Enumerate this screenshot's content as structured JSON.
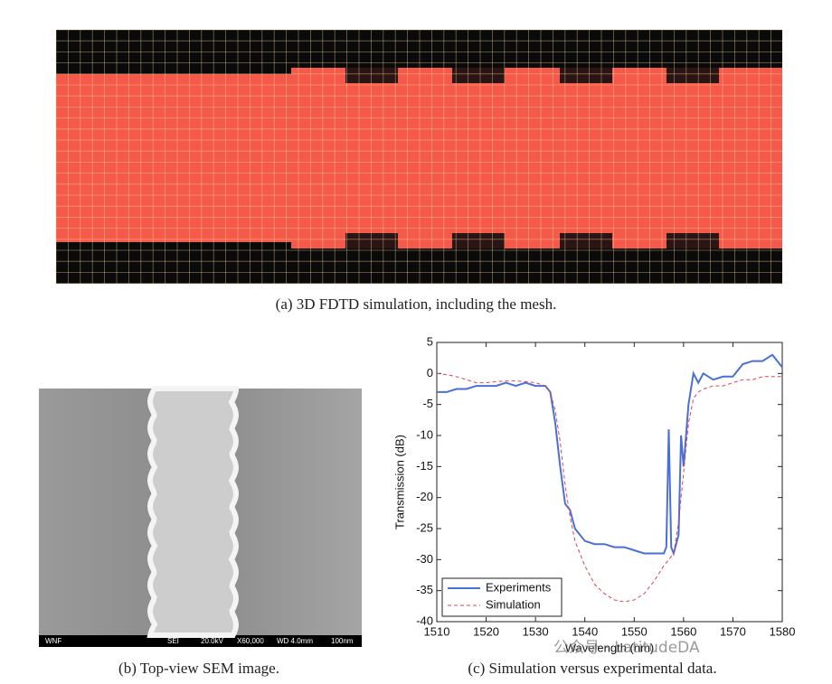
{
  "figure": {
    "caption_a": "(a) 3D FDTD simulation, including the mesh.",
    "caption_b": "(b) Top-view SEM image.",
    "caption_c": "(c) Simulation versus experimental data.",
    "sem_info": [
      "WNF",
      "SEI",
      "20.0kV",
      "X60,000",
      "WD 4.0mm",
      "100nm"
    ],
    "watermark": "公众号 · LatitudeDA"
  },
  "chart_data": {
    "type": "line",
    "x_label": "Wavelength (nm)",
    "y_label": "Transmission (dB)",
    "x": [
      1510,
      1512,
      1514,
      1516,
      1518,
      1520,
      1522,
      1524,
      1526,
      1528,
      1530,
      1532,
      1533,
      1534,
      1535,
      1536,
      1537,
      1538,
      1540,
      1542,
      1544,
      1546,
      1548,
      1550,
      1552,
      1554,
      1556,
      1556.5,
      1557,
      1557.5,
      1558,
      1559,
      1559.5,
      1560,
      1560.5,
      1561,
      1562,
      1563,
      1564,
      1566,
      1568,
      1570,
      1572,
      1574,
      1576,
      1578,
      1580
    ],
    "series": [
      {
        "name": "Experiments",
        "color": "#4a6fd8",
        "dash": false,
        "values": [
          -3,
          -3,
          -2.5,
          -2.5,
          -2,
          -2,
          -2,
          -1.5,
          -2,
          -1.5,
          -2,
          -2,
          -3,
          -8,
          -15,
          -21,
          -22,
          -25,
          -27,
          -27.5,
          -27.5,
          -28,
          -28,
          -28.5,
          -29,
          -29,
          -29,
          -28,
          -9,
          -28,
          -29,
          -26,
          -10,
          -15,
          -10,
          -5,
          0,
          -1.5,
          0,
          -1,
          -0.5,
          -0.5,
          1.5,
          2,
          2,
          3,
          1
        ]
      },
      {
        "name": "Simulation",
        "color": "#e0405a",
        "dash": true,
        "values": [
          0,
          -0.2,
          -0.5,
          -1,
          -1.5,
          -1.5,
          -1.3,
          -1.2,
          -1.2,
          -1.3,
          -1.5,
          -2,
          -3,
          -6,
          -11,
          -18,
          -23,
          -27,
          -31,
          -34,
          -35.5,
          -36.5,
          -36.8,
          -36.5,
          -35.5,
          -33.5,
          -31,
          -30.5,
          -30,
          -29.5,
          -29,
          -24,
          -20,
          -16,
          -12,
          -8,
          -4,
          -3,
          -2.5,
          -2,
          -2,
          -1.5,
          -1,
          -1,
          -0.5,
          -0.5,
          -0.5
        ]
      }
    ],
    "xlim": [
      1510,
      1580
    ],
    "xticks": [
      1510,
      1520,
      1530,
      1540,
      1550,
      1560,
      1570,
      1580
    ],
    "ylim": [
      -40,
      5
    ],
    "yticks": [
      -40,
      -35,
      -30,
      -25,
      -20,
      -15,
      -10,
      -5,
      0,
      5
    ],
    "legend": "lower left",
    "grid": false
  }
}
